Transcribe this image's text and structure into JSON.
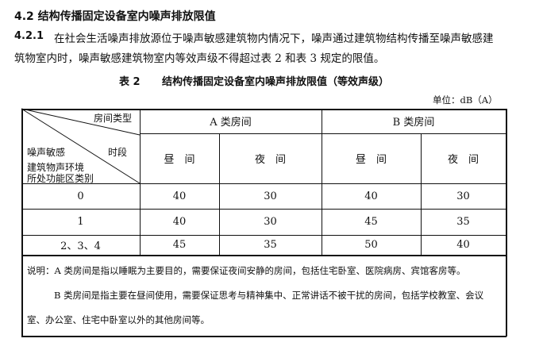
{
  "section_title": "4.2 结构传播固定设备室内噪声排放限值",
  "paragraph": {
    "number": "4.2.1",
    "line1": "在社会生活噪声排放源位于噪声敏感建筑物内情况下，噪声通过建筑物结构传播至噪声敏感建",
    "line2": "筑物室内时，噪声敏感建筑物室内等效声级不得超过表 2 和表 3 规定的限值。"
  },
  "table": {
    "caption_number": "表 2",
    "caption_title": "结构传播固定设备室内噪声排放限值（等效声级）",
    "unit": "单位：dB（A）",
    "corner": {
      "top_right": "房间类型",
      "mid_right": "时段",
      "left_lines": [
        "噪声敏感",
        "建筑物声环境",
        "所处功能区类别"
      ]
    },
    "groups": [
      "A 类房间",
      "B 类房间"
    ],
    "periods": [
      "昼　间",
      "夜　间",
      "昼　间",
      "夜　间"
    ],
    "rows": [
      {
        "zone": "0",
        "values": [
          "40",
          "30",
          "40",
          "30"
        ]
      },
      {
        "zone": "1",
        "values": [
          "40",
          "30",
          "45",
          "35"
        ]
      },
      {
        "zone": "2、3、4",
        "values": [
          "45",
          "35",
          "50",
          "40"
        ]
      }
    ],
    "notes": [
      "说明：A 类房间是指以睡眠为主要目的，需要保证夜间安静的房间，包括住宅卧室、医院病房、宾馆客房等。",
      "B 类房间是指主要在昼间使用，需要保证思考与精神集中、正常讲话不被干扰的房间，包括学校教室、会议",
      "室、办公室、住宅中卧室以外的其他房间等。"
    ]
  }
}
